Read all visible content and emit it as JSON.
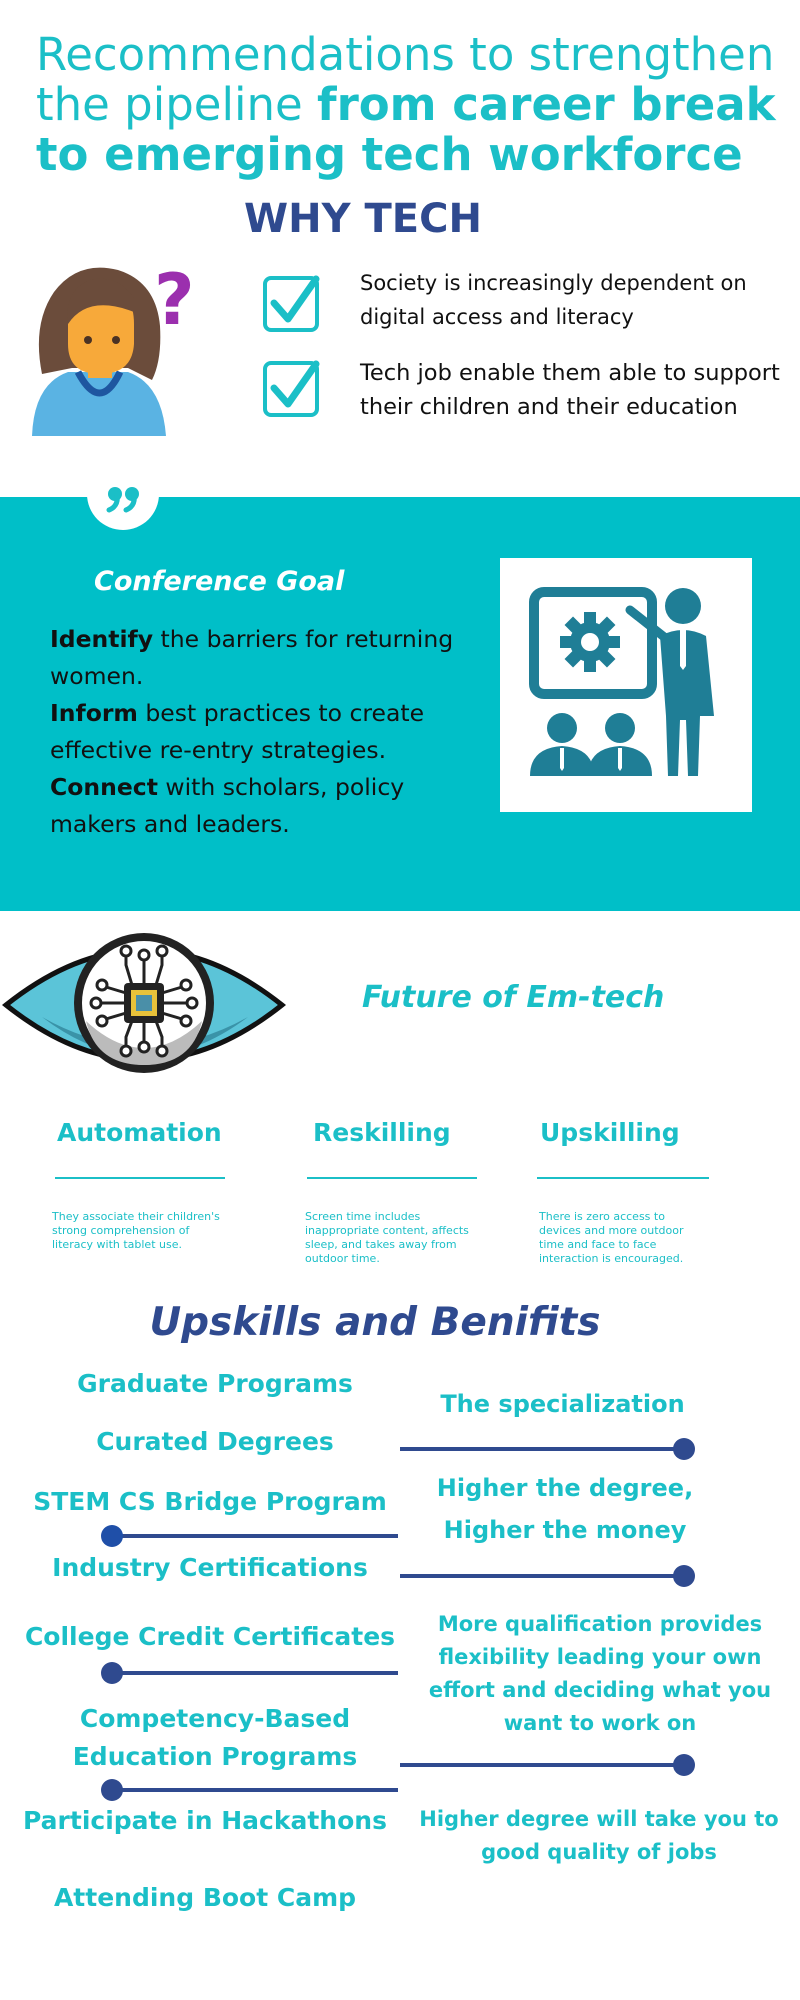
{
  "header": {
    "title_regular": "Recommendations to strengthen the pipeline ",
    "title_bold": "from career break to emerging tech workforce",
    "why_label": "WHY TECH"
  },
  "why_tech": {
    "reasons": [
      "Society is increasingly dependent on digital access and literacy",
      "Tech job enable them able to support their children and their education"
    ]
  },
  "conference": {
    "title": "Conference Goal",
    "items": [
      {
        "bold": "Identify",
        "rest": " the barriers for returning women."
      },
      {
        "bold": "Inform",
        "rest": " best practices to create effective re-entry strategies."
      },
      {
        "bold": "Connect",
        "rest": " with scholars, policy makers and leaders."
      }
    ]
  },
  "future": {
    "title": "Future of Em-tech",
    "columns": [
      {
        "title": "Automation",
        "desc": "They associate their children's strong comprehension of literacy with tablet use."
      },
      {
        "title": "Reskilling",
        "desc": "Screen time includes inappropriate content, affects sleep, and takes away from outdoor time."
      },
      {
        "title": "Upskilling",
        "desc": "There is zero access to devices and more outdoor time and face to face interaction is encouraged."
      }
    ]
  },
  "upskills": {
    "title": "Upskills and Benifits",
    "programs": [
      "Graduate Programs",
      "Curated Degrees",
      "STEM CS Bridge Program",
      "Industry Certifications",
      "College Credit Certificates",
      "Competency-Based Education Programs",
      "Participate in Hackathons",
      "Attending Boot Camp"
    ],
    "benefits": [
      "The specialization",
      "Higher the degree, Higher the money",
      "More qualification provides flexibility leading your own effort and deciding what you want to work on",
      "Higher degree will take you to good quality of jobs"
    ]
  },
  "colors": {
    "teal": "#1bbfc7",
    "band": "#00bfc8",
    "navy": "#2f4a8f",
    "icon_teal": "#1f7e96"
  }
}
